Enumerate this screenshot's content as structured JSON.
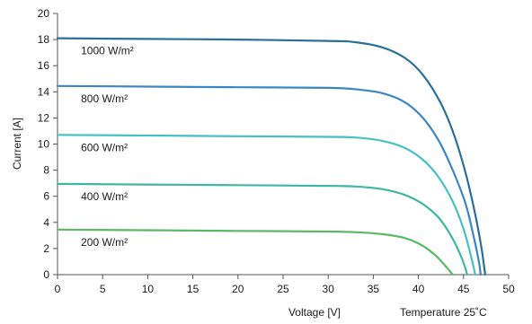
{
  "chart_data": {
    "type": "line",
    "xlabel": "Voltage [V]",
    "ylabel": "Current [A]",
    "annotation": "Temperature 25˚C",
    "xlim": [
      0,
      50
    ],
    "ylim": [
      0,
      20
    ],
    "xticks": [
      "0",
      "5",
      "10",
      "15",
      "20",
      "25",
      "30",
      "35",
      "40",
      "45",
      "50"
    ],
    "yticks": [
      "0",
      "2",
      "4",
      "6",
      "8",
      "10",
      "12",
      "14",
      "16",
      "18",
      "20"
    ],
    "grid": false,
    "series": [
      {
        "name": "1000 W/m²",
        "color": "#2a6f97",
        "points": [
          [
            0,
            18.1
          ],
          [
            10,
            18.05
          ],
          [
            20,
            18.0
          ],
          [
            30,
            17.9
          ],
          [
            33,
            17.8
          ],
          [
            36,
            17.4
          ],
          [
            38.5,
            16.6
          ],
          [
            40.5,
            15.3
          ],
          [
            42.5,
            13.1
          ],
          [
            44,
            10.6
          ],
          [
            45.3,
            7.6
          ],
          [
            46.3,
            4.6
          ],
          [
            47,
            2.0
          ],
          [
            47.4,
            0
          ]
        ]
      },
      {
        "name": "800 W/m²",
        "color": "#3b86c6",
        "points": [
          [
            0,
            14.45
          ],
          [
            10,
            14.4
          ],
          [
            20,
            14.35
          ],
          [
            30,
            14.3
          ],
          [
            33,
            14.2
          ],
          [
            36,
            13.9
          ],
          [
            38.5,
            13.2
          ],
          [
            40.5,
            12.0
          ],
          [
            42.3,
            10.2
          ],
          [
            43.8,
            8.0
          ],
          [
            45.2,
            5.5
          ],
          [
            46.1,
            3.0
          ],
          [
            46.7,
            1.0
          ],
          [
            46.9,
            0
          ]
        ]
      },
      {
        "name": "600 W/m²",
        "color": "#48bfc2",
        "points": [
          [
            0,
            10.7
          ],
          [
            10,
            10.65
          ],
          [
            20,
            10.6
          ],
          [
            30,
            10.55
          ],
          [
            33,
            10.5
          ],
          [
            36,
            10.25
          ],
          [
            38.5,
            9.7
          ],
          [
            40.5,
            8.8
          ],
          [
            42.2,
            7.5
          ],
          [
            43.8,
            5.6
          ],
          [
            45,
            3.5
          ],
          [
            45.8,
            1.5
          ],
          [
            46.3,
            0
          ]
        ]
      },
      {
        "name": "400 W/m²",
        "color": "#3fb5a3",
        "points": [
          [
            0,
            6.95
          ],
          [
            10,
            6.9
          ],
          [
            20,
            6.85
          ],
          [
            30,
            6.8
          ],
          [
            33,
            6.75
          ],
          [
            36,
            6.55
          ],
          [
            38.5,
            6.1
          ],
          [
            40.5,
            5.4
          ],
          [
            42.2,
            4.4
          ],
          [
            43.6,
            3.0
          ],
          [
            44.6,
            1.6
          ],
          [
            45.2,
            0.5
          ],
          [
            45.4,
            0
          ]
        ]
      },
      {
        "name": "200 W/m²",
        "color": "#5bb866",
        "points": [
          [
            0,
            3.45
          ],
          [
            10,
            3.4
          ],
          [
            20,
            3.35
          ],
          [
            30,
            3.3
          ],
          [
            33,
            3.25
          ],
          [
            36,
            3.1
          ],
          [
            38.5,
            2.8
          ],
          [
            40.5,
            2.2
          ],
          [
            42,
            1.4
          ],
          [
            43.2,
            0.5
          ],
          [
            43.8,
            0
          ]
        ]
      }
    ]
  }
}
